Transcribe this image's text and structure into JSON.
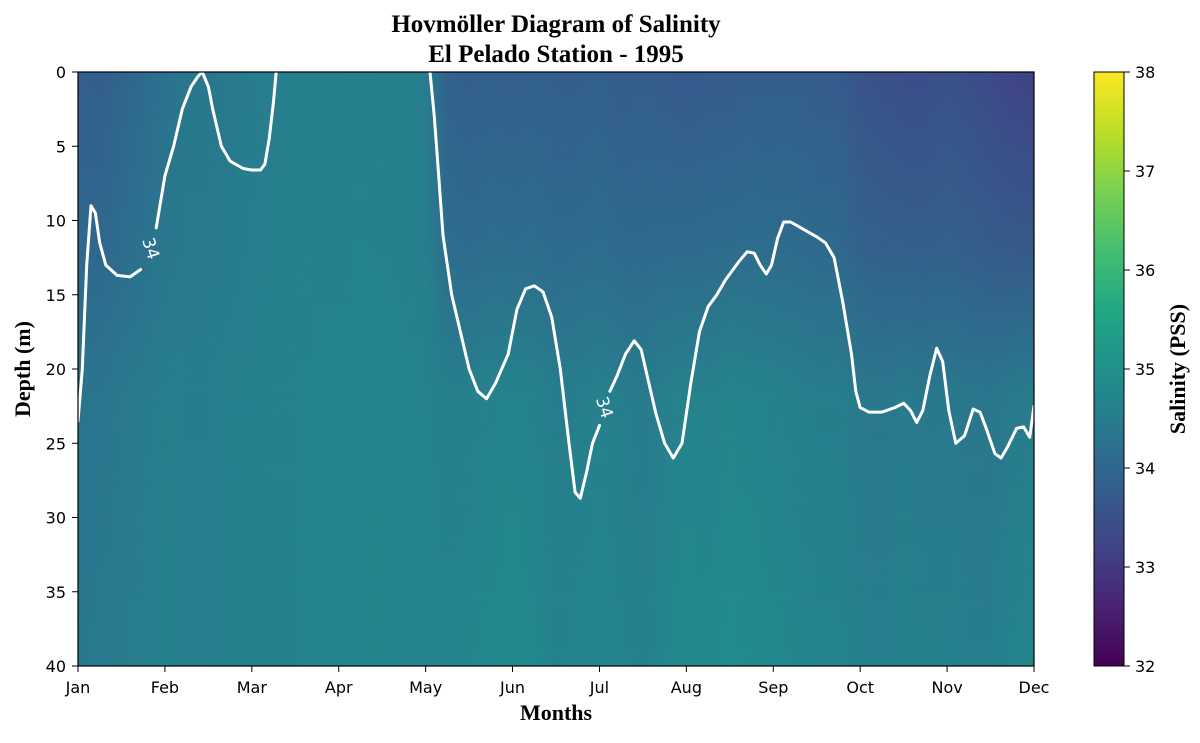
{
  "chart_data": {
    "type": "heatmap",
    "title": [
      "Hovmöller Diagram of Salinity",
      "El Pelado Station - 1995"
    ],
    "xlabel": "Months",
    "ylabel": "Depth (m)",
    "colorbar_label": "Salinity (PSS)",
    "colormap": "viridis",
    "x_ticks": [
      "Jan",
      "Feb",
      "Mar",
      "Apr",
      "May",
      "Jun",
      "Jul",
      "Aug",
      "Sep",
      "Oct",
      "Nov",
      "Dec"
    ],
    "x_range": [
      0,
      11
    ],
    "y_ticks": [
      0,
      5,
      10,
      15,
      20,
      25,
      30,
      35,
      40
    ],
    "ylim": [
      40,
      0
    ],
    "y_inverted": true,
    "color_range": [
      32,
      38
    ],
    "colorbar_ticks": [
      32,
      33,
      34,
      35,
      36,
      37,
      38
    ],
    "salinity_field": {
      "months": [
        0,
        0.25,
        0.5,
        0.75,
        1.0,
        1.25,
        1.5,
        1.75,
        2.0,
        2.25,
        2.5,
        2.75,
        3.0,
        3.25,
        3.5,
        3.75,
        4.0,
        4.25,
        4.5,
        4.75,
        5.0,
        5.25,
        5.5,
        5.75,
        6.0,
        6.25,
        6.5,
        6.75,
        7.0,
        7.25,
        7.5,
        7.75,
        8.0,
        8.25,
        8.5,
        8.75,
        9.0,
        9.25,
        9.5,
        9.75,
        10.0,
        10.25,
        10.5,
        10.75,
        11.0
      ],
      "surface": [
        33.85,
        33.8,
        33.95,
        34.1,
        34.25,
        34.4,
        34.4,
        34.45,
        34.5,
        34.55,
        34.6,
        34.6,
        34.6,
        34.65,
        34.6,
        34.6,
        34.5,
        33.9,
        33.8,
        33.85,
        33.8,
        33.85,
        33.8,
        33.8,
        33.85,
        33.75,
        33.8,
        33.75,
        33.7,
        33.75,
        33.75,
        33.8,
        33.8,
        33.8,
        33.75,
        33.75,
        33.55,
        33.5,
        33.45,
        33.45,
        33.5,
        33.45,
        33.35,
        33.25,
        33.2
      ],
      "bottom": [
        34.4,
        34.45,
        34.5,
        34.55,
        34.6,
        34.55,
        34.55,
        34.6,
        34.6,
        34.65,
        34.65,
        34.7,
        34.7,
        34.7,
        34.75,
        34.7,
        34.7,
        34.7,
        34.75,
        34.8,
        34.85,
        34.8,
        34.65,
        34.7,
        34.75,
        34.7,
        34.6,
        34.75,
        34.85,
        34.8,
        34.9,
        34.85,
        34.8,
        34.75,
        34.7,
        34.7,
        34.6,
        34.55,
        34.65,
        34.6,
        34.6,
        34.55,
        34.55,
        34.7,
        34.75
      ]
    },
    "contour": {
      "level": 34,
      "label": "34",
      "segments": [
        {
          "points": [
            [
              0.0,
              23.5
            ],
            [
              0.05,
              20.0
            ],
            [
              0.1,
              13.0
            ],
            [
              0.15,
              9.0
            ],
            [
              0.2,
              9.5
            ],
            [
              0.25,
              11.5
            ],
            [
              0.32,
              13.0
            ],
            [
              0.45,
              13.7
            ],
            [
              0.6,
              13.8
            ],
            [
              0.72,
              13.3
            ]
          ]
        },
        {
          "points": [
            [
              0.9,
              10.5
            ],
            [
              1.0,
              7.0
            ],
            [
              1.1,
              5.0
            ],
            [
              1.2,
              2.5
            ],
            [
              1.3,
              1.0
            ],
            [
              1.38,
              0.3
            ],
            [
              1.43,
              0.0
            ],
            [
              1.5,
              1.0
            ],
            [
              1.55,
              2.5
            ],
            [
              1.65,
              5.0
            ],
            [
              1.75,
              6.0
            ],
            [
              1.9,
              6.5
            ],
            [
              2.0,
              6.6
            ],
            [
              2.1,
              6.6
            ],
            [
              2.15,
              6.2
            ],
            [
              2.2,
              4.5
            ],
            [
              2.25,
              2.0
            ],
            [
              2.28,
              0.0
            ]
          ]
        },
        {
          "points": [
            [
              4.05,
              0.0
            ],
            [
              4.1,
              3.0
            ],
            [
              4.15,
              7.0
            ],
            [
              4.2,
              11.0
            ],
            [
              4.3,
              15.0
            ],
            [
              4.4,
              17.5
            ],
            [
              4.5,
              20.0
            ],
            [
              4.6,
              21.5
            ],
            [
              4.7,
              22.0
            ],
            [
              4.8,
              21.0
            ],
            [
              4.95,
              19.0
            ],
            [
              5.05,
              16.0
            ],
            [
              5.15,
              14.6
            ],
            [
              5.25,
              14.4
            ],
            [
              5.35,
              14.8
            ],
            [
              5.45,
              16.5
            ],
            [
              5.55,
              20.0
            ],
            [
              5.65,
              25.0
            ],
            [
              5.72,
              28.3
            ],
            [
              5.78,
              28.7
            ],
            [
              5.85,
              27.0
            ],
            [
              5.92,
              25.0
            ],
            [
              6.0,
              23.8
            ]
          ]
        },
        {
          "points": [
            [
              6.12,
              21.5
            ],
            [
              6.2,
              20.5
            ],
            [
              6.3,
              19.0
            ],
            [
              6.4,
              18.1
            ],
            [
              6.48,
              18.7
            ],
            [
              6.55,
              20.5
            ],
            [
              6.65,
              23.0
            ],
            [
              6.75,
              25.0
            ],
            [
              6.85,
              26.0
            ],
            [
              6.95,
              25.0
            ],
            [
              7.05,
              21.0
            ],
            [
              7.15,
              17.5
            ],
            [
              7.25,
              15.8
            ],
            [
              7.35,
              15.0
            ],
            [
              7.45,
              14.0
            ],
            [
              7.6,
              12.8
            ],
            [
              7.7,
              12.1
            ],
            [
              7.78,
              12.2
            ],
            [
              7.85,
              13.0
            ],
            [
              7.92,
              13.6
            ],
            [
              7.98,
              13.0
            ],
            [
              8.05,
              11.2
            ],
            [
              8.12,
              10.1
            ],
            [
              8.2,
              10.1
            ],
            [
              8.35,
              10.6
            ],
            [
              8.5,
              11.1
            ],
            [
              8.6,
              11.5
            ],
            [
              8.7,
              12.5
            ],
            [
              8.8,
              15.5
            ],
            [
              8.9,
              19.0
            ],
            [
              8.95,
              21.5
            ],
            [
              9.0,
              22.6
            ],
            [
              9.1,
              22.9
            ],
            [
              9.25,
              22.9
            ],
            [
              9.4,
              22.6
            ],
            [
              9.5,
              22.3
            ],
            [
              9.58,
              22.8
            ],
            [
              9.65,
              23.6
            ],
            [
              9.72,
              22.8
            ],
            [
              9.8,
              20.5
            ],
            [
              9.88,
              18.6
            ],
            [
              9.95,
              19.5
            ],
            [
              10.02,
              22.8
            ],
            [
              10.1,
              25.0
            ],
            [
              10.2,
              24.5
            ],
            [
              10.3,
              22.7
            ],
            [
              10.38,
              22.9
            ],
            [
              10.45,
              24.0
            ],
            [
              10.55,
              25.7
            ],
            [
              10.62,
              26.0
            ],
            [
              10.7,
              25.2
            ],
            [
              10.8,
              24.0
            ],
            [
              10.88,
              23.9
            ],
            [
              10.95,
              24.6
            ],
            [
              11.0,
              22.5
            ]
          ]
        }
      ],
      "label_positions": [
        [
          0.83,
          11.9
        ],
        [
          6.05,
          22.6
        ]
      ]
    }
  }
}
